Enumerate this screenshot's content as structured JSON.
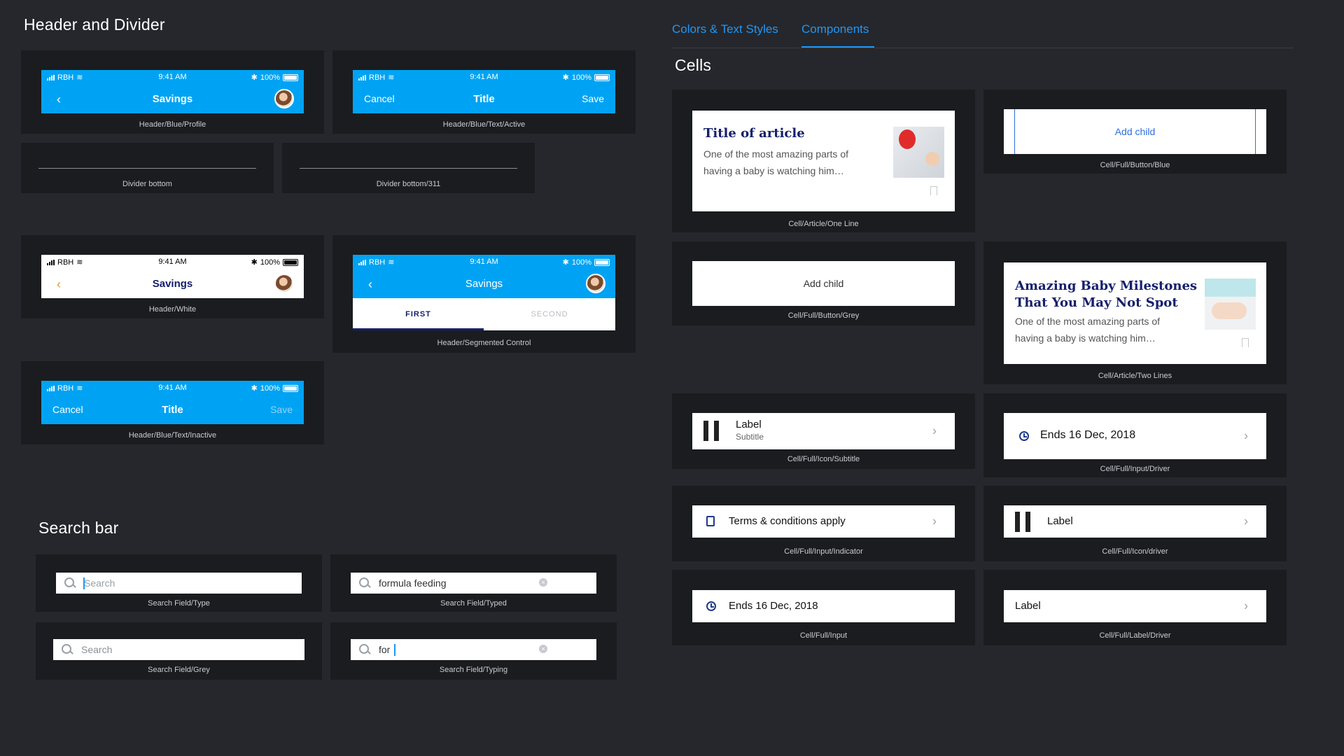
{
  "tabs": [
    {
      "label": "Colors & Text Styles"
    },
    {
      "label": "Components"
    }
  ],
  "sections": {
    "header_divider": "Header and Divider",
    "search_bar": "Search bar",
    "cells": "Cells"
  },
  "status_bar": {
    "carrier": "RBH",
    "time": "9:41 AM",
    "battery": "100%"
  },
  "headers": {
    "blue_profile": {
      "title": "Savings",
      "caption": "Header/Blue/Profile"
    },
    "blue_text_active": {
      "left": "Cancel",
      "title": "Title",
      "right": "Save",
      "caption": "Header/Blue/Text/Active"
    },
    "white": {
      "title": "Savings",
      "caption": "Header/White"
    },
    "segmented": {
      "title": "Savings",
      "seg_first": "FIRST",
      "seg_second": "SECOND",
      "caption": "Header/Segmented Control"
    },
    "blue_text_inactive": {
      "left": "Cancel",
      "title": "Title",
      "right": "Save",
      "caption": "Header/Blue/Text/Inactive"
    }
  },
  "dividers": {
    "bottom": "Divider bottom",
    "bottom311": "Divider bottom/311"
  },
  "search": {
    "type": {
      "text": "Search",
      "caption": "Search Field/Type"
    },
    "typed": {
      "text": "formula feeding",
      "caption": "Search Field/Typed"
    },
    "grey": {
      "text": "Search",
      "caption": "Search Field/Grey"
    },
    "typing": {
      "text": "for",
      "caption": "Search Field/Typing"
    }
  },
  "cells": {
    "article_one": {
      "title": "Title of article",
      "body": "One of the most amazing parts of having a baby is watching him…",
      "caption": "Cell/Article/One Line"
    },
    "button_blue": {
      "label": "Add child",
      "caption": "Cell/Full/Button/Blue"
    },
    "button_grey": {
      "label": "Add child",
      "caption": "Cell/Full/Button/Grey"
    },
    "article_two": {
      "title": "Amazing Baby Milestones That You May Not Spot",
      "body": "One of the most amazing parts of having a baby is watching him…",
      "caption": "Cell/Article/Two Lines"
    },
    "icon_subtitle": {
      "label": "Label",
      "subtitle": "Subtitle",
      "caption": "Cell/Full/Icon/Subtitle"
    },
    "input_driver": {
      "label": "Ends 16 Dec, 2018",
      "caption": "Cell/Full/Input/Driver"
    },
    "input_indicator": {
      "label": "Terms & conditions apply",
      "caption": "Cell/Full/Input/Indicator"
    },
    "icon_driver": {
      "label": "Label",
      "caption": "Cell/Full/Icon/driver"
    },
    "input": {
      "label": "Ends 16 Dec, 2018",
      "caption": "Cell/Full/Input"
    },
    "label_driver": {
      "label": "Label",
      "caption": "Cell/Full/Label/Driver"
    }
  },
  "colors": {
    "brand_blue": "#00a3f3",
    "tab_blue": "#2196f3",
    "navy": "#15206b"
  }
}
